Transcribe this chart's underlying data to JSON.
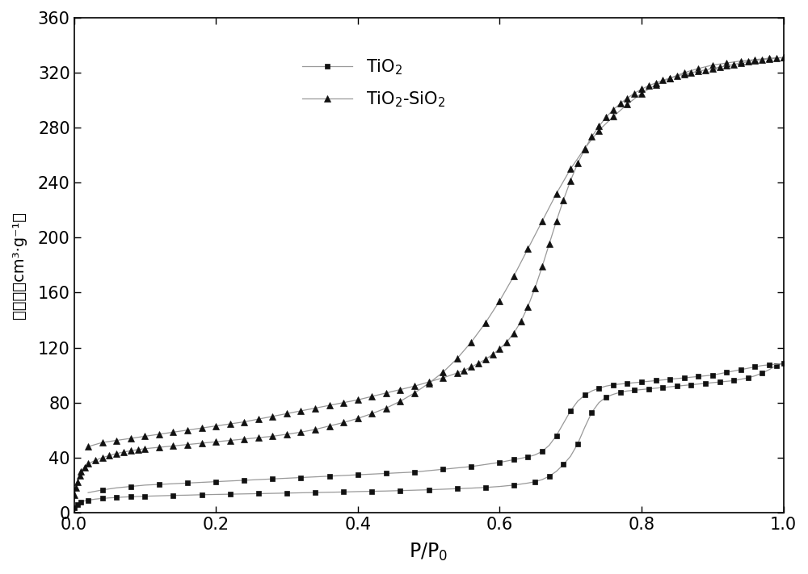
{
  "title": "",
  "xlabel": "P/P$_0$",
  "xlim": [
    0.0,
    1.0
  ],
  "ylim": [
    0,
    360
  ],
  "yticks": [
    0,
    40,
    80,
    120,
    160,
    200,
    240,
    280,
    320,
    360
  ],
  "xticks": [
    0.0,
    0.2,
    0.4,
    0.6,
    0.8,
    1.0
  ],
  "line_color": "#999999",
  "marker_color": "#111111",
  "background_color": "#ffffff",
  "legend_labels": [
    "TiO$_2$",
    "TiO$_2$-SiO$_2$"
  ],
  "tio2_adsorption": [
    [
      0.001,
      3.5
    ],
    [
      0.003,
      5.0
    ],
    [
      0.005,
      6.0
    ],
    [
      0.008,
      7.2
    ],
    [
      0.01,
      7.8
    ],
    [
      0.015,
      8.5
    ],
    [
      0.02,
      9.0
    ],
    [
      0.03,
      9.8
    ],
    [
      0.04,
      10.3
    ],
    [
      0.05,
      10.7
    ],
    [
      0.06,
      11.0
    ],
    [
      0.07,
      11.3
    ],
    [
      0.08,
      11.5
    ],
    [
      0.09,
      11.7
    ],
    [
      0.1,
      11.9
    ],
    [
      0.12,
      12.2
    ],
    [
      0.14,
      12.5
    ],
    [
      0.16,
      12.7
    ],
    [
      0.18,
      13.0
    ],
    [
      0.2,
      13.2
    ],
    [
      0.22,
      13.4
    ],
    [
      0.24,
      13.6
    ],
    [
      0.26,
      13.8
    ],
    [
      0.28,
      14.0
    ],
    [
      0.3,
      14.2
    ],
    [
      0.32,
      14.4
    ],
    [
      0.34,
      14.6
    ],
    [
      0.36,
      14.8
    ],
    [
      0.38,
      15.0
    ],
    [
      0.4,
      15.3
    ],
    [
      0.42,
      15.5
    ],
    [
      0.44,
      15.7
    ],
    [
      0.46,
      16.0
    ],
    [
      0.48,
      16.3
    ],
    [
      0.5,
      16.6
    ],
    [
      0.52,
      17.0
    ],
    [
      0.54,
      17.4
    ],
    [
      0.56,
      17.8
    ],
    [
      0.58,
      18.3
    ],
    [
      0.6,
      19.0
    ],
    [
      0.62,
      20.0
    ],
    [
      0.64,
      21.5
    ],
    [
      0.65,
      22.5
    ],
    [
      0.66,
      24.0
    ],
    [
      0.67,
      26.5
    ],
    [
      0.68,
      30.0
    ],
    [
      0.69,
      35.0
    ],
    [
      0.7,
      41.0
    ],
    [
      0.71,
      50.0
    ],
    [
      0.72,
      62.0
    ],
    [
      0.73,
      73.0
    ],
    [
      0.74,
      80.0
    ],
    [
      0.75,
      84.0
    ],
    [
      0.76,
      86.0
    ],
    [
      0.77,
      87.5
    ],
    [
      0.78,
      88.5
    ],
    [
      0.79,
      89.0
    ],
    [
      0.8,
      89.5
    ],
    [
      0.81,
      90.0
    ],
    [
      0.82,
      90.5
    ],
    [
      0.83,
      91.0
    ],
    [
      0.84,
      91.5
    ],
    [
      0.85,
      92.0
    ],
    [
      0.86,
      92.5
    ],
    [
      0.87,
      93.0
    ],
    [
      0.88,
      93.5
    ],
    [
      0.89,
      94.0
    ],
    [
      0.9,
      94.5
    ],
    [
      0.91,
      95.0
    ],
    [
      0.92,
      95.5
    ],
    [
      0.93,
      96.0
    ],
    [
      0.94,
      97.0
    ],
    [
      0.95,
      98.0
    ],
    [
      0.96,
      99.5
    ],
    [
      0.97,
      101.5
    ],
    [
      0.98,
      104.0
    ],
    [
      0.99,
      107.0
    ],
    [
      1.0,
      108.5
    ]
  ],
  "tio2_desorption": [
    [
      1.0,
      108.5
    ],
    [
      0.99,
      108.0
    ],
    [
      0.98,
      107.5
    ],
    [
      0.97,
      107.0
    ],
    [
      0.96,
      106.0
    ],
    [
      0.95,
      105.0
    ],
    [
      0.94,
      104.0
    ],
    [
      0.93,
      103.0
    ],
    [
      0.92,
      102.0
    ],
    [
      0.91,
      101.0
    ],
    [
      0.9,
      100.0
    ],
    [
      0.89,
      99.5
    ],
    [
      0.88,
      99.0
    ],
    [
      0.87,
      98.5
    ],
    [
      0.86,
      98.0
    ],
    [
      0.85,
      97.5
    ],
    [
      0.84,
      97.0
    ],
    [
      0.83,
      96.5
    ],
    [
      0.82,
      96.0
    ],
    [
      0.81,
      95.5
    ],
    [
      0.8,
      95.0
    ],
    [
      0.79,
      94.5
    ],
    [
      0.78,
      94.0
    ],
    [
      0.77,
      93.5
    ],
    [
      0.76,
      93.0
    ],
    [
      0.75,
      92.0
    ],
    [
      0.74,
      90.5
    ],
    [
      0.73,
      88.5
    ],
    [
      0.72,
      85.5
    ],
    [
      0.71,
      81.0
    ],
    [
      0.7,
      74.0
    ],
    [
      0.69,
      65.0
    ],
    [
      0.68,
      56.0
    ],
    [
      0.67,
      49.0
    ],
    [
      0.66,
      44.5
    ],
    [
      0.65,
      42.0
    ],
    [
      0.64,
      40.5
    ],
    [
      0.63,
      39.5
    ],
    [
      0.62,
      38.5
    ],
    [
      0.61,
      37.5
    ],
    [
      0.6,
      36.5
    ],
    [
      0.58,
      35.0
    ],
    [
      0.56,
      33.5
    ],
    [
      0.54,
      32.5
    ],
    [
      0.52,
      31.5
    ],
    [
      0.5,
      30.5
    ],
    [
      0.48,
      29.5
    ],
    [
      0.46,
      29.0
    ],
    [
      0.44,
      28.5
    ],
    [
      0.42,
      28.0
    ],
    [
      0.4,
      27.5
    ],
    [
      0.38,
      27.0
    ],
    [
      0.36,
      26.5
    ],
    [
      0.34,
      26.0
    ],
    [
      0.32,
      25.5
    ],
    [
      0.3,
      25.0
    ],
    [
      0.28,
      24.5
    ],
    [
      0.26,
      24.0
    ],
    [
      0.24,
      23.5
    ],
    [
      0.22,
      23.0
    ],
    [
      0.2,
      22.5
    ],
    [
      0.18,
      22.0
    ],
    [
      0.16,
      21.5
    ],
    [
      0.14,
      21.0
    ],
    [
      0.12,
      20.5
    ],
    [
      0.1,
      20.0
    ],
    [
      0.08,
      19.0
    ],
    [
      0.06,
      18.0
    ],
    [
      0.04,
      16.5
    ],
    [
      0.02,
      14.5
    ]
  ],
  "tio2sio2_adsorption": [
    [
      0.001,
      13.0
    ],
    [
      0.003,
      18.0
    ],
    [
      0.005,
      22.0
    ],
    [
      0.008,
      27.0
    ],
    [
      0.01,
      30.0
    ],
    [
      0.015,
      33.0
    ],
    [
      0.02,
      35.5
    ],
    [
      0.03,
      38.0
    ],
    [
      0.04,
      40.0
    ],
    [
      0.05,
      41.5
    ],
    [
      0.06,
      43.0
    ],
    [
      0.07,
      44.0
    ],
    [
      0.08,
      45.0
    ],
    [
      0.09,
      45.8
    ],
    [
      0.1,
      46.5
    ],
    [
      0.12,
      47.5
    ],
    [
      0.14,
      48.5
    ],
    [
      0.16,
      49.5
    ],
    [
      0.18,
      50.5
    ],
    [
      0.2,
      51.5
    ],
    [
      0.22,
      52.5
    ],
    [
      0.24,
      53.5
    ],
    [
      0.26,
      54.5
    ],
    [
      0.28,
      55.5
    ],
    [
      0.3,
      57.0
    ],
    [
      0.32,
      58.5
    ],
    [
      0.34,
      60.5
    ],
    [
      0.36,
      63.0
    ],
    [
      0.38,
      65.5
    ],
    [
      0.4,
      68.5
    ],
    [
      0.42,
      72.0
    ],
    [
      0.44,
      76.0
    ],
    [
      0.46,
      81.0
    ],
    [
      0.48,
      87.0
    ],
    [
      0.5,
      94.0
    ],
    [
      0.52,
      102.0
    ],
    [
      0.54,
      112.0
    ],
    [
      0.56,
      124.0
    ],
    [
      0.58,
      138.0
    ],
    [
      0.6,
      154.0
    ],
    [
      0.62,
      172.0
    ],
    [
      0.64,
      192.0
    ],
    [
      0.66,
      212.0
    ],
    [
      0.68,
      232.0
    ],
    [
      0.7,
      250.0
    ],
    [
      0.72,
      265.0
    ],
    [
      0.74,
      278.0
    ],
    [
      0.76,
      288.0
    ],
    [
      0.78,
      297.0
    ],
    [
      0.8,
      305.0
    ],
    [
      0.82,
      311.0
    ],
    [
      0.84,
      316.0
    ],
    [
      0.86,
      320.0
    ],
    [
      0.88,
      323.0
    ],
    [
      0.9,
      325.5
    ],
    [
      0.92,
      327.0
    ],
    [
      0.94,
      328.5
    ],
    [
      0.96,
      329.5
    ],
    [
      0.98,
      330.5
    ],
    [
      1.0,
      331.0
    ]
  ],
  "tio2sio2_desorption": [
    [
      1.0,
      331.0
    ],
    [
      0.99,
      330.5
    ],
    [
      0.98,
      330.0
    ],
    [
      0.97,
      329.5
    ],
    [
      0.96,
      329.0
    ],
    [
      0.95,
      328.0
    ],
    [
      0.94,
      327.0
    ],
    [
      0.93,
      326.0
    ],
    [
      0.92,
      325.0
    ],
    [
      0.91,
      324.0
    ],
    [
      0.9,
      323.0
    ],
    [
      0.89,
      322.0
    ],
    [
      0.88,
      321.0
    ],
    [
      0.87,
      320.0
    ],
    [
      0.86,
      319.0
    ],
    [
      0.85,
      317.5
    ],
    [
      0.84,
      316.0
    ],
    [
      0.83,
      314.5
    ],
    [
      0.82,
      312.5
    ],
    [
      0.81,
      310.5
    ],
    [
      0.8,
      308.0
    ],
    [
      0.79,
      305.0
    ],
    [
      0.78,
      301.5
    ],
    [
      0.77,
      297.5
    ],
    [
      0.76,
      293.0
    ],
    [
      0.75,
      287.5
    ],
    [
      0.74,
      281.0
    ],
    [
      0.73,
      273.5
    ],
    [
      0.72,
      264.5
    ],
    [
      0.71,
      254.0
    ],
    [
      0.7,
      241.5
    ],
    [
      0.69,
      227.5
    ],
    [
      0.68,
      212.0
    ],
    [
      0.67,
      195.5
    ],
    [
      0.66,
      179.0
    ],
    [
      0.65,
      163.5
    ],
    [
      0.64,
      150.0
    ],
    [
      0.63,
      139.0
    ],
    [
      0.62,
      130.5
    ],
    [
      0.61,
      124.0
    ],
    [
      0.6,
      119.0
    ],
    [
      0.59,
      115.0
    ],
    [
      0.58,
      111.5
    ],
    [
      0.57,
      108.5
    ],
    [
      0.56,
      106.0
    ],
    [
      0.55,
      103.5
    ],
    [
      0.54,
      101.5
    ],
    [
      0.52,
      98.0
    ],
    [
      0.5,
      95.0
    ],
    [
      0.48,
      92.0
    ],
    [
      0.46,
      89.5
    ],
    [
      0.44,
      87.0
    ],
    [
      0.42,
      84.5
    ],
    [
      0.4,
      82.0
    ],
    [
      0.38,
      80.0
    ],
    [
      0.36,
      78.0
    ],
    [
      0.34,
      76.0
    ],
    [
      0.32,
      74.0
    ],
    [
      0.3,
      72.0
    ],
    [
      0.28,
      70.0
    ],
    [
      0.26,
      68.0
    ],
    [
      0.24,
      66.0
    ],
    [
      0.22,
      64.5
    ],
    [
      0.2,
      63.0
    ],
    [
      0.18,
      61.5
    ],
    [
      0.16,
      60.0
    ],
    [
      0.14,
      58.5
    ],
    [
      0.12,
      57.0
    ],
    [
      0.1,
      55.5
    ],
    [
      0.08,
      54.0
    ],
    [
      0.06,
      52.5
    ],
    [
      0.04,
      51.0
    ],
    [
      0.02,
      48.0
    ]
  ]
}
